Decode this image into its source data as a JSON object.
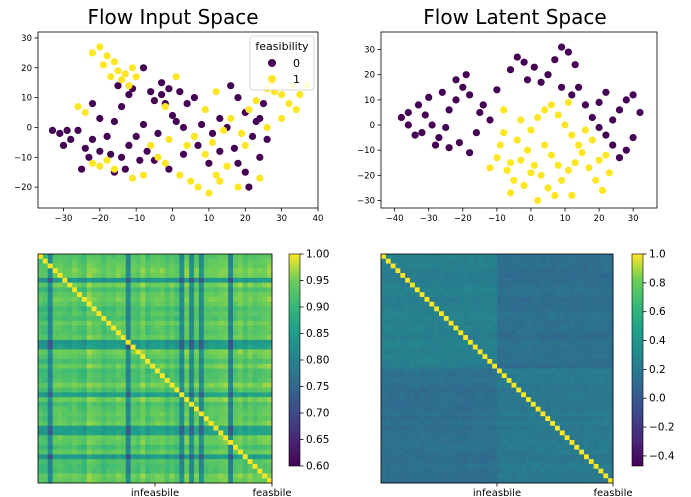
{
  "colors": {
    "class0": "#440154",
    "class1": "#fde725"
  },
  "chart_data": [
    {
      "type": "scatter",
      "title": "Flow Input Space",
      "xlim": [
        -37,
        40
      ],
      "ylim": [
        -27,
        32
      ],
      "xticks": [
        -30,
        -20,
        -10,
        0,
        10,
        20,
        30,
        40
      ],
      "yticks": [
        -20,
        -10,
        0,
        10,
        20,
        30
      ],
      "legend": {
        "title": "feasibility",
        "position": "top-right",
        "entries": [
          "0",
          "1"
        ]
      },
      "grid": false,
      "series": [
        {
          "name": "0",
          "color": "#440154",
          "points": [
            [
              -33,
              -1
            ],
            [
              -31,
              -2
            ],
            [
              -29,
              -1
            ],
            [
              -28,
              -4
            ],
            [
              -30,
              -6
            ],
            [
              -26,
              -1
            ],
            [
              -24,
              -7
            ],
            [
              -22,
              -4
            ],
            [
              -20,
              -8
            ],
            [
              -18,
              -3
            ],
            [
              -16,
              2
            ],
            [
              -14,
              -10
            ],
            [
              -12,
              -6
            ],
            [
              -10,
              -3
            ],
            [
              -8,
              1
            ],
            [
              -20,
              3
            ],
            [
              -22,
              8
            ],
            [
              -14,
              7
            ],
            [
              -12,
              11
            ],
            [
              -11,
              13
            ],
            [
              -6,
              12
            ],
            [
              -5,
              9
            ],
            [
              -3,
              15
            ],
            [
              -2,
              8
            ],
            [
              0,
              4
            ],
            [
              1,
              2
            ],
            [
              3,
              0
            ],
            [
              -4,
              -2
            ],
            [
              -9,
              -11
            ],
            [
              -13,
              -14
            ],
            [
              -16,
              -15
            ],
            [
              -23,
              -10
            ],
            [
              -25,
              -14
            ],
            [
              -17,
              -9
            ],
            [
              -7,
              -8
            ],
            [
              4,
              8
            ],
            [
              6,
              10
            ],
            [
              8,
              1
            ],
            [
              11,
              -2
            ],
            [
              13,
              3
            ],
            [
              15,
              0
            ],
            [
              17,
              -7
            ],
            [
              18,
              -12
            ],
            [
              20,
              -15
            ],
            [
              22,
              -3
            ],
            [
              23,
              2
            ],
            [
              25,
              8
            ],
            [
              20,
              5
            ],
            [
              18,
              10
            ],
            [
              16,
              14
            ],
            [
              24,
              -10
            ],
            [
              26,
              -4
            ],
            [
              13,
              -8
            ],
            [
              10,
              -12
            ],
            [
              7,
              -6
            ],
            [
              3,
              -9
            ],
            [
              -1,
              -14
            ],
            [
              -5,
              -11
            ],
            [
              -15,
              14
            ],
            [
              -8,
              20
            ],
            [
              -3,
              11
            ],
            [
              -1,
              13
            ],
            [
              2,
              12
            ],
            [
              24,
              3
            ],
            [
              21,
              -20
            ]
          ]
        },
        {
          "name": "1",
          "color": "#fde725",
          "points": [
            [
              -20,
              27
            ],
            [
              -18,
              24
            ],
            [
              -16,
              22
            ],
            [
              -15,
              19
            ],
            [
              -13,
              18
            ],
            [
              -14,
              16
            ],
            [
              -17,
              17
            ],
            [
              -19,
              21
            ],
            [
              -22,
              25
            ],
            [
              -12,
              14
            ],
            [
              -10,
              17
            ],
            [
              -11,
              20
            ],
            [
              -20,
              -13
            ],
            [
              -18,
              -11
            ],
            [
              -22,
              -12
            ],
            [
              -16,
              -14
            ],
            [
              -24,
              5
            ],
            [
              -26,
              7
            ],
            [
              -4,
              -10
            ],
            [
              -2,
              -12
            ],
            [
              2,
              -16
            ],
            [
              5,
              -18
            ],
            [
              7,
              -20
            ],
            [
              10,
              -22
            ],
            [
              12,
              -16
            ],
            [
              15,
              -13
            ],
            [
              9,
              -9
            ],
            [
              11,
              -5
            ],
            [
              14,
              -1
            ],
            [
              16,
              3
            ],
            [
              19,
              -2
            ],
            [
              21,
              6
            ],
            [
              23,
              9
            ],
            [
              26,
              13
            ],
            [
              28,
              12
            ],
            [
              30,
              11
            ],
            [
              32,
              8
            ],
            [
              34,
              6
            ],
            [
              35,
              11
            ],
            [
              37,
              14
            ],
            [
              30,
              3
            ],
            [
              24,
              -17
            ],
            [
              18,
              -20
            ],
            [
              20,
              -6
            ],
            [
              26,
              0
            ],
            [
              12,
              12
            ],
            [
              9,
              6
            ],
            [
              6,
              -3
            ],
            [
              4,
              -6
            ],
            [
              -6,
              -6
            ],
            [
              -8,
              -16
            ],
            [
              -11,
              -17
            ],
            [
              1,
              17
            ],
            [
              -1,
              -4
            ],
            [
              13,
              -18
            ],
            [
              33,
              14
            ],
            [
              27,
              15
            ],
            [
              -2,
              7
            ]
          ]
        }
      ]
    },
    {
      "type": "scatter",
      "title": "Flow Latent Space",
      "xlim": [
        -44,
        37
      ],
      "ylim": [
        -33,
        37
      ],
      "xticks": [
        -40,
        -30,
        -20,
        -10,
        0,
        10,
        20,
        30
      ],
      "yticks": [
        -30,
        -20,
        -10,
        0,
        10,
        20,
        30
      ],
      "grid": false,
      "series": [
        {
          "name": "0",
          "color": "#440154",
          "points": [
            [
              -38,
              3
            ],
            [
              -36,
              5
            ],
            [
              -33,
              8
            ],
            [
              -31,
              4
            ],
            [
              -29,
              0
            ],
            [
              -32,
              -3
            ],
            [
              -27,
              -5
            ],
            [
              -25,
              -1
            ],
            [
              -24,
              6
            ],
            [
              -22,
              10
            ],
            [
              -20,
              15
            ],
            [
              -22,
              18
            ],
            [
              -19,
              20
            ],
            [
              -18,
              12
            ],
            [
              -14,
              8
            ],
            [
              -12,
              2
            ],
            [
              -16,
              -3
            ],
            [
              -21,
              -7
            ],
            [
              -18,
              -11
            ],
            [
              -24,
              -9
            ],
            [
              -28,
              -8
            ],
            [
              -34,
              -4
            ],
            [
              -6,
              22
            ],
            [
              -4,
              27
            ],
            [
              -2,
              25
            ],
            [
              1,
              23
            ],
            [
              3,
              17
            ],
            [
              5,
              20
            ],
            [
              7,
              26
            ],
            [
              9,
              31
            ],
            [
              11,
              29
            ],
            [
              13,
              24
            ],
            [
              14,
              15
            ],
            [
              12,
              12
            ],
            [
              9,
              15
            ],
            [
              -1,
              18
            ],
            [
              16,
              8
            ],
            [
              18,
              3
            ],
            [
              20,
              -1
            ],
            [
              22,
              -4
            ],
            [
              24,
              2
            ],
            [
              26,
              6
            ],
            [
              28,
              10
            ],
            [
              30,
              12
            ],
            [
              32,
              5
            ],
            [
              30,
              -5
            ],
            [
              28,
              -10
            ],
            [
              26,
              -13
            ],
            [
              24,
              -8
            ],
            [
              20,
              9
            ],
            [
              22,
              13
            ],
            [
              -30,
              11
            ],
            [
              -10,
              14
            ],
            [
              -36,
              0
            ],
            [
              -15,
              5
            ],
            [
              -26,
              13
            ]
          ]
        },
        {
          "name": "1",
          "color": "#fde725",
          "points": [
            [
              -7,
              -18
            ],
            [
              -5,
              -22
            ],
            [
              -3,
              -14
            ],
            [
              -1,
              -10
            ],
            [
              1,
              -16
            ],
            [
              3,
              -20
            ],
            [
              5,
              -25
            ],
            [
              7,
              -28
            ],
            [
              9,
              -22
            ],
            [
              11,
              -18
            ],
            [
              13,
              -15
            ],
            [
              15,
              -11
            ],
            [
              17,
              -17
            ],
            [
              19,
              -22
            ],
            [
              21,
              -26
            ],
            [
              23,
              -19
            ],
            [
              22,
              -12
            ],
            [
              -9,
              -8
            ],
            [
              -8,
              -3
            ],
            [
              -4,
              -6
            ],
            [
              0,
              -2
            ],
            [
              2,
              3
            ],
            [
              4,
              6
            ],
            [
              6,
              8
            ],
            [
              8,
              4
            ],
            [
              10,
              0
            ],
            [
              12,
              -4
            ],
            [
              14,
              -8
            ],
            [
              6,
              -12
            ],
            [
              -2,
              -24
            ],
            [
              -6,
              -27
            ],
            [
              2,
              -30
            ],
            [
              16,
              -2
            ],
            [
              18,
              -6
            ],
            [
              -10,
              -13
            ],
            [
              -12,
              -17
            ],
            [
              12,
              -28
            ],
            [
              20,
              -14
            ],
            [
              -6,
              -15
            ],
            [
              4,
              -8
            ],
            [
              0,
              -19
            ],
            [
              8,
              -16
            ],
            [
              -3,
              2
            ],
            [
              11,
              9
            ],
            [
              -8,
              6
            ]
          ]
        }
      ]
    },
    {
      "type": "heatmap",
      "colorbar": {
        "range": [
          0.6,
          1.0
        ],
        "ticks": [
          "1.00",
          "0.95",
          "0.90",
          "0.85",
          "0.80",
          "0.75",
          "0.70",
          "0.65",
          "0.60"
        ]
      },
      "xtick_labels": [
        "infeasbile",
        "feasbile"
      ],
      "base_value": 0.96,
      "dark_rows": [
        0.1,
        0.38,
        0.41,
        0.62,
        0.76,
        0.79,
        0.9
      ],
      "dark_cols": [
        0.05,
        0.38,
        0.62,
        0.65,
        0.7,
        0.82
      ]
    },
    {
      "type": "heatmap",
      "colorbar": {
        "range": [
          -0.47,
          1.0
        ],
        "ticks": [
          "1.0",
          "0.8",
          "0.6",
          "0.4",
          "0.2",
          "0.0",
          "−0.2",
          "−0.4"
        ]
      },
      "xtick_labels": [
        "infeasbile",
        "feasbile"
      ],
      "block_values": {
        "infeasible": 0.25,
        "feasible": 0.2,
        "cross": 0.13,
        "diagonal": 1.0
      }
    }
  ]
}
